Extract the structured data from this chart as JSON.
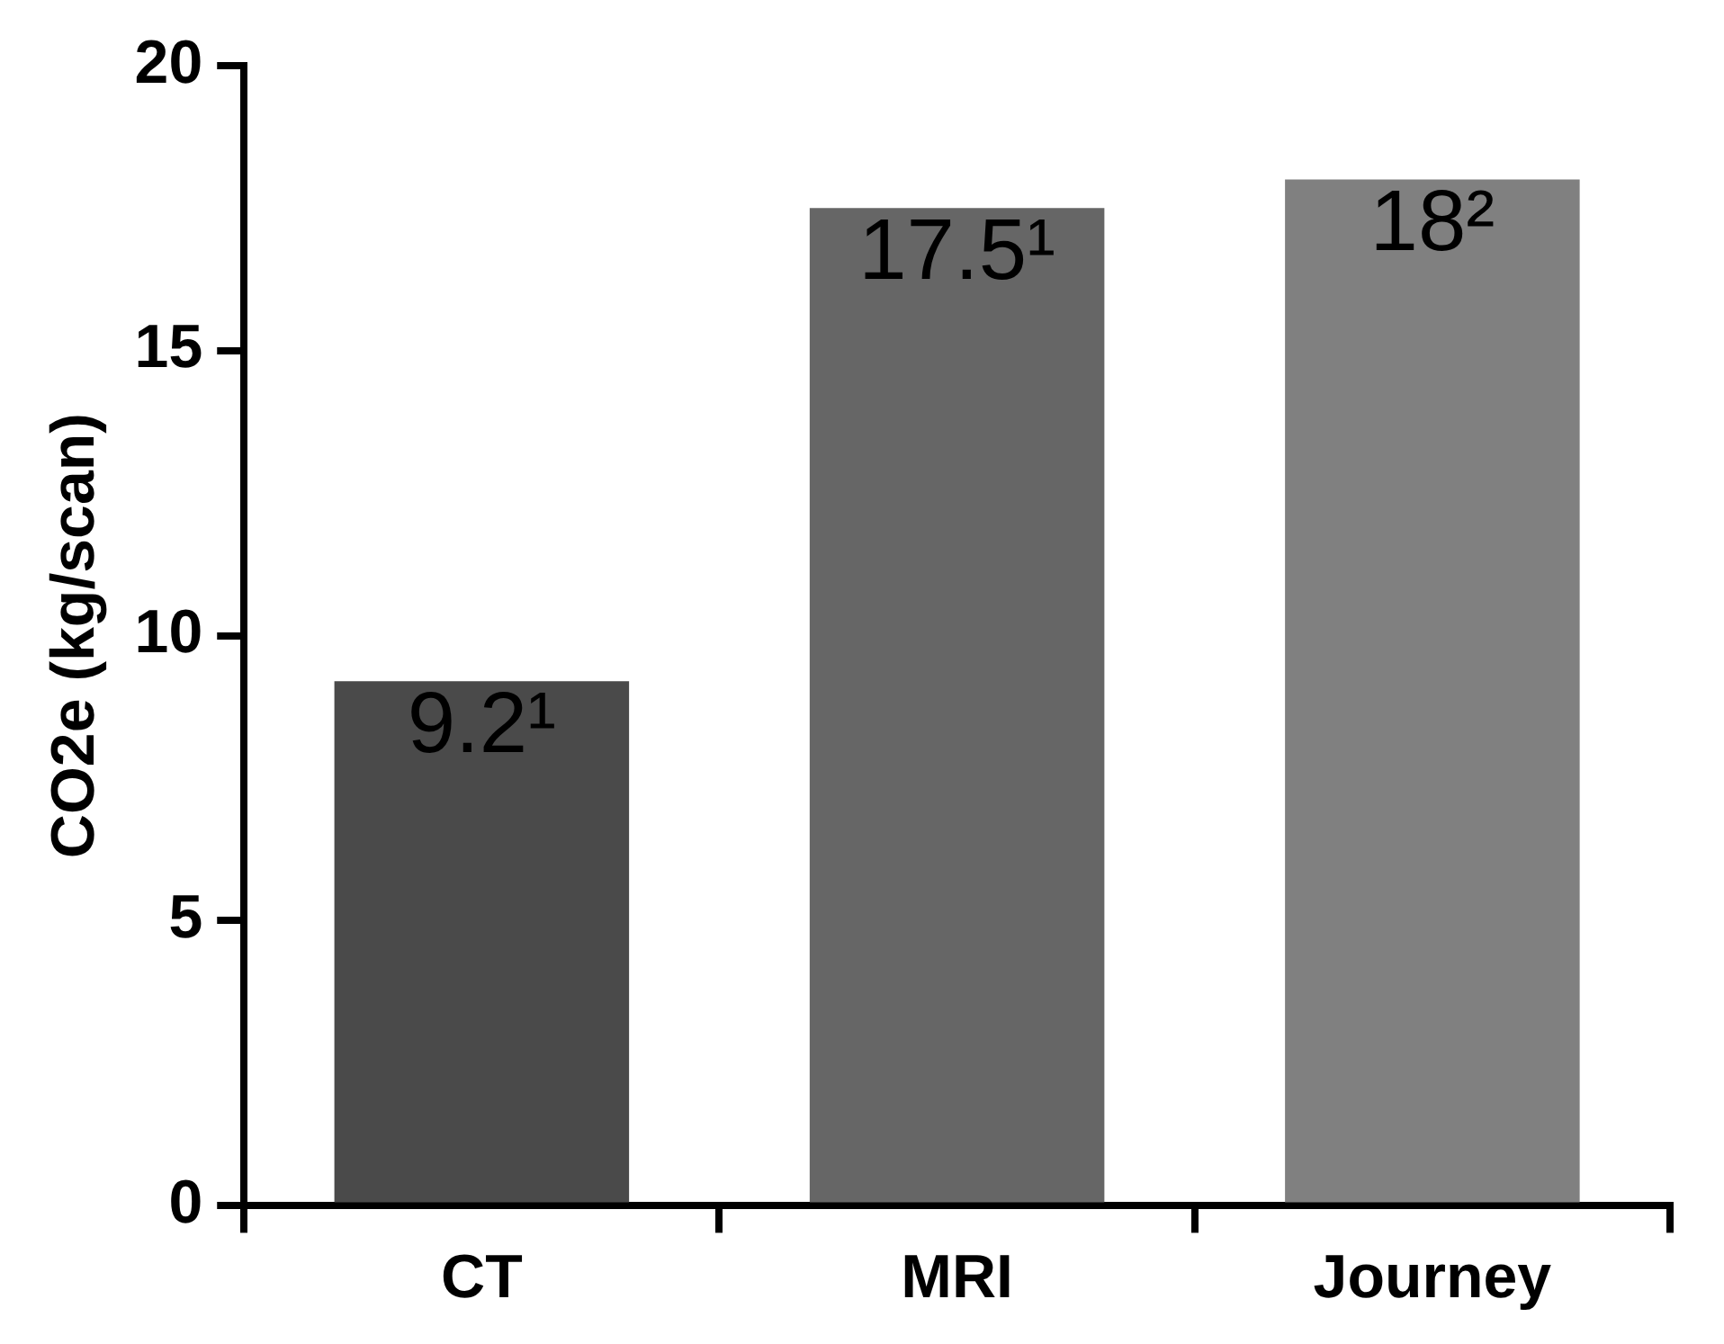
{
  "chart_data": {
    "type": "bar",
    "ylabel": "CO2e (kg/scan)",
    "categories": [
      "CT",
      "MRI",
      "Journey"
    ],
    "values": [
      9.2,
      17.5,
      18
    ],
    "colors": [
      "#4a4a4a",
      "#666666",
      "#808080"
    ],
    "value_labels": [
      "9.2¹",
      "17.5¹",
      "18²"
    ],
    "ylim": [
      0,
      20
    ],
    "yticks": [
      0,
      5,
      10,
      15,
      20
    ],
    "grid": false,
    "legend": false
  }
}
